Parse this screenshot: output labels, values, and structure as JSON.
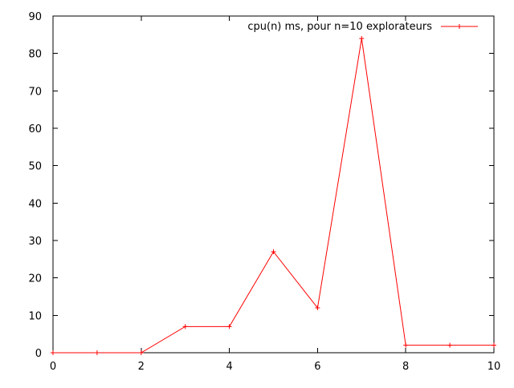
{
  "chart_data": {
    "type": "line",
    "title": "",
    "xlabel": "",
    "ylabel": "",
    "xlim": [
      0,
      10
    ],
    "ylim": [
      0,
      90
    ],
    "x_ticks": [
      0,
      2,
      4,
      6,
      8,
      10
    ],
    "y_ticks": [
      0,
      10,
      20,
      30,
      40,
      50,
      60,
      70,
      80,
      90
    ],
    "grid": false,
    "legend_position": "top-right",
    "series": [
      {
        "name": "cpu(n) ms, pour n=10 explorateurs",
        "color": "#ff0000",
        "marker": "plus",
        "x": [
          0,
          1,
          2,
          3,
          4,
          5,
          6,
          7,
          8,
          9,
          10
        ],
        "y": [
          0,
          0,
          0,
          7,
          7,
          27,
          12,
          84,
          2,
          2,
          2
        ]
      }
    ]
  }
}
